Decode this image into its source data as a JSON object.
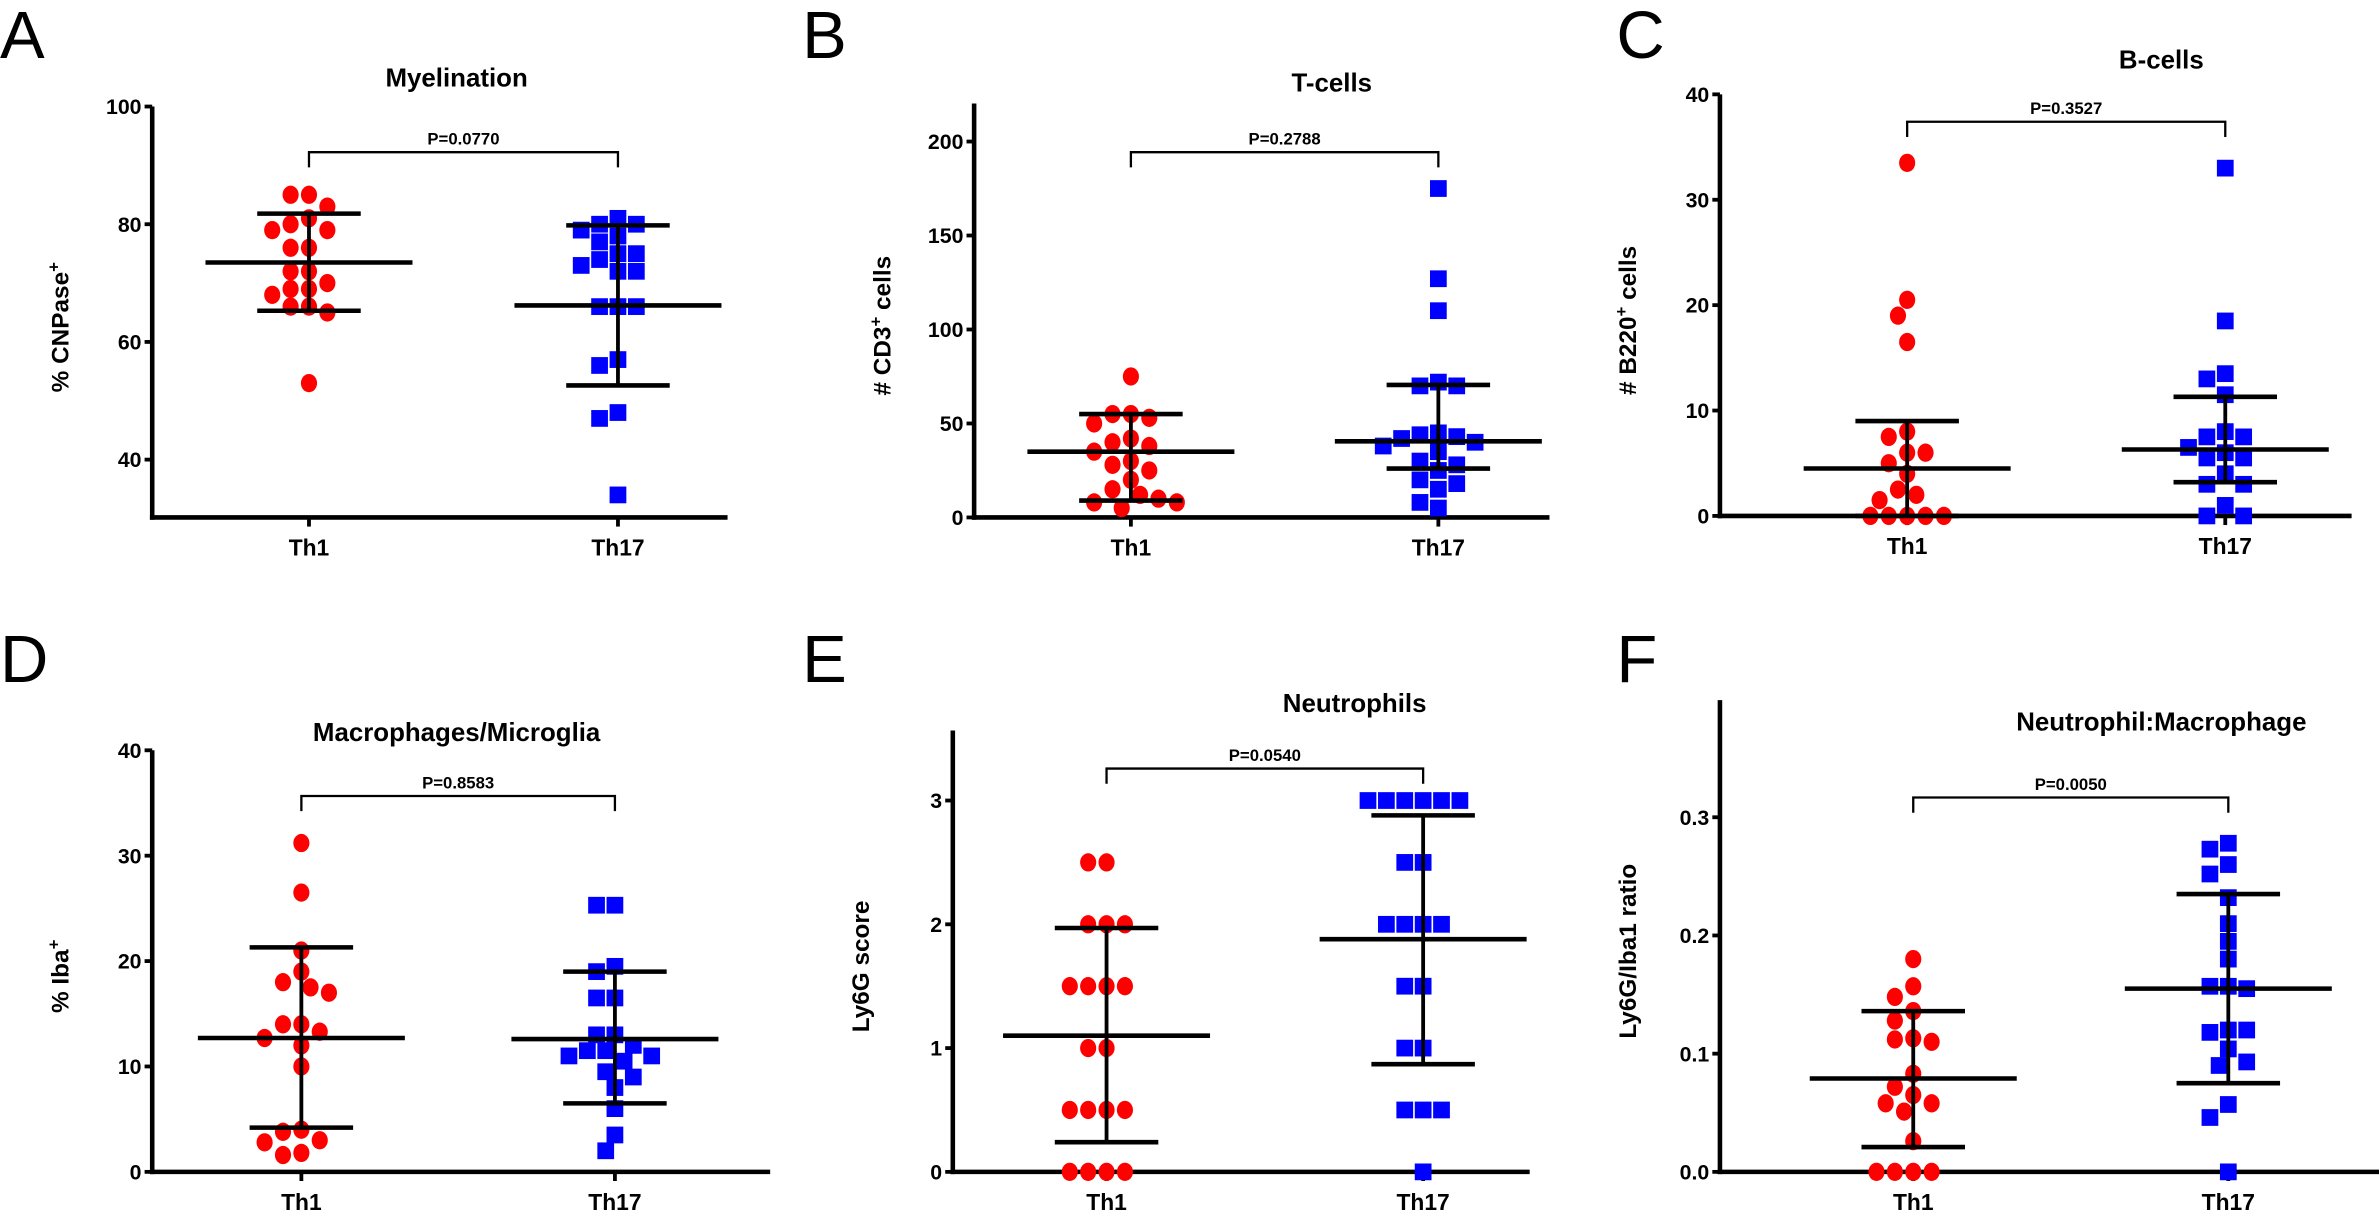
{
  "colors": {
    "th1": "#ff0000",
    "th17": "#0000ff",
    "axis": "#000000"
  },
  "chart_data": [
    {
      "panel": "A",
      "type": "scatter",
      "title": "Myelination",
      "ylabel": [
        "% CNPase",
        "+",
        ""
      ],
      "ylim": [
        30,
        100
      ],
      "ticks": [
        "40",
        "60",
        "80",
        "100"
      ],
      "tick_values": [
        40,
        60,
        80,
        100
      ],
      "categories": [
        "Th1",
        "Th17"
      ],
      "p_value": "P=0.0770",
      "series": [
        {
          "name": "Th1",
          "marker": "circle",
          "values": [
            85,
            85,
            83,
            81,
            80,
            79,
            79,
            76,
            76,
            72,
            72,
            70,
            69,
            69,
            68,
            66,
            66,
            65,
            53
          ],
          "mean": 73.5,
          "error": [
            65.3,
            81.8
          ]
        },
        {
          "name": "Th17",
          "marker": "square",
          "values": [
            81,
            80,
            80,
            79,
            78,
            77,
            75,
            75,
            74,
            73,
            72,
            72,
            66,
            66,
            66,
            57,
            56,
            48,
            47,
            34
          ],
          "mean": 66.2,
          "error": [
            52.6,
            79.8
          ]
        }
      ]
    },
    {
      "panel": "B",
      "type": "scatter",
      "title": "T-cells",
      "ylabel": [
        "# CD3",
        "+",
        " cells"
      ],
      "ylim": [
        0,
        220
      ],
      "ticks": [
        "0",
        "50",
        "100",
        "150",
        "200"
      ],
      "tick_values": [
        0,
        50,
        100,
        150,
        200
      ],
      "categories": [
        "Th1",
        "Th17"
      ],
      "p_value": "P=0.2788",
      "series": [
        {
          "name": "Th1",
          "marker": "circle",
          "values": [
            75,
            55,
            55,
            53,
            50,
            42,
            40,
            38,
            35,
            30,
            28,
            25,
            20,
            15,
            12,
            10,
            8,
            8,
            5
          ],
          "mean": 35,
          "error": [
            9,
            55
          ]
        },
        {
          "name": "Th17",
          "marker": "square",
          "values": [
            175,
            127,
            110,
            72,
            70,
            70,
            45,
            44,
            43,
            42,
            40,
            38,
            35,
            30,
            28,
            25,
            20,
            18,
            15,
            8,
            5
          ],
          "mean": 40.5,
          "error": [
            26,
            70.5
          ]
        }
      ]
    },
    {
      "panel": "C",
      "type": "scatter",
      "title": "B-cells",
      "ylabel": [
        "# B220",
        "+",
        " cells"
      ],
      "ylim": [
        0,
        40
      ],
      "ticks": [
        "0",
        "10",
        "20",
        "30",
        "40"
      ],
      "tick_values": [
        0,
        10,
        20,
        30,
        40
      ],
      "categories": [
        "Th1",
        "Th17"
      ],
      "p_value": "P=0.3527",
      "series": [
        {
          "name": "Th1",
          "marker": "circle",
          "values": [
            33.5,
            20.5,
            19,
            16.5,
            8,
            7.5,
            6,
            6,
            5,
            4,
            2.5,
            2,
            1.5,
            0,
            0,
            0,
            0,
            0
          ],
          "mean": 4.5,
          "error": [
            0,
            9
          ]
        },
        {
          "name": "Th17",
          "marker": "square",
          "values": [
            33,
            18.5,
            13.5,
            13,
            11.5,
            8,
            7.5,
            7.5,
            6.5,
            6,
            5.5,
            5.5,
            4,
            3,
            3,
            1,
            0,
            0
          ],
          "mean": 6.3,
          "error": [
            3.2,
            11.3
          ]
        }
      ]
    },
    {
      "panel": "D",
      "type": "scatter",
      "title": "Macrophages/Microglia",
      "ylabel": [
        "% Iba",
        "+",
        ""
      ],
      "ylim": [
        0,
        40
      ],
      "ticks": [
        "0",
        "10",
        "20",
        "30",
        "40"
      ],
      "tick_values": [
        0,
        10,
        20,
        30,
        40
      ],
      "categories": [
        "Th1",
        "Th17"
      ],
      "p_value": "P=0.8583",
      "series": [
        {
          "name": "Th1",
          "marker": "circle",
          "values": [
            31.2,
            26.5,
            21,
            19,
            18,
            17.5,
            17,
            14,
            14,
            13.3,
            12.7,
            12,
            10,
            4,
            3.8,
            3,
            2.8,
            1.8,
            1.6
          ],
          "mean": 12.7,
          "error": [
            4.2,
            21.3
          ]
        },
        {
          "name": "Th17",
          "marker": "square",
          "values": [
            25.3,
            25.3,
            19.5,
            19,
            16.5,
            16.5,
            13,
            13,
            12,
            11.5,
            11.5,
            11,
            11,
            10.5,
            9.5,
            9,
            8,
            6,
            3.5,
            2
          ],
          "mean": 12.6,
          "error": [
            6.5,
            19
          ]
        }
      ]
    },
    {
      "panel": "E",
      "type": "scatter",
      "title": "Neutrophils",
      "ylabel": [
        "Ly6G score",
        "",
        ""
      ],
      "ylim": [
        0,
        3.5
      ],
      "ticks": [
        "0",
        "1",
        "2",
        "3"
      ],
      "tick_values": [
        0,
        1,
        2,
        3
      ],
      "categories": [
        "Th1",
        "Th17"
      ],
      "p_value": "P=0.0540",
      "series": [
        {
          "name": "Th1",
          "marker": "circle",
          "values": [
            2.5,
            2.5,
            2,
            2,
            2,
            1.5,
            1.5,
            1.5,
            1.5,
            1,
            1,
            0.5,
            0.5,
            0.5,
            0.5,
            0,
            0,
            0,
            0
          ],
          "mean": 1.1,
          "error": [
            0.24,
            1.97
          ]
        },
        {
          "name": "Th17",
          "marker": "square",
          "values": [
            3,
            3,
            3,
            3,
            3,
            3,
            2.5,
            2.5,
            2,
            2,
            2,
            2,
            1.5,
            1.5,
            1,
            1,
            0.5,
            0.5,
            0.5,
            0
          ],
          "mean": 1.88,
          "error": [
            0.87,
            2.88
          ]
        }
      ]
    },
    {
      "panel": "F",
      "type": "scatter",
      "title": "Neutrophil:Macrophage",
      "ylabel": [
        "Ly6G/Iba1 ratio",
        "",
        ""
      ],
      "ylim": [
        0,
        0.35
      ],
      "ticks": [
        "0.0",
        "0.1",
        "0.2",
        "0.3"
      ],
      "tick_values": [
        0,
        0.1,
        0.2,
        0.3
      ],
      "categories": [
        "Th1",
        "Th17"
      ],
      "p_value": "P=0.0050",
      "series": [
        {
          "name": "Th1",
          "marker": "circle",
          "values": [
            0.18,
            0.157,
            0.148,
            0.136,
            0.128,
            0.113,
            0.112,
            0.11,
            0.083,
            0.072,
            0.065,
            0.058,
            0.058,
            0.051,
            0.026,
            0,
            0,
            0,
            0
          ],
          "mean": 0.079,
          "error": [
            0.021,
            0.136
          ]
        },
        {
          "name": "Th17",
          "marker": "square",
          "values": [
            0.278,
            0.273,
            0.26,
            0.252,
            0.232,
            0.21,
            0.195,
            0.18,
            0.157,
            0.157,
            0.155,
            0.12,
            0.118,
            0.12,
            0.104,
            0.09,
            0.093,
            0.057,
            0.046,
            0
          ],
          "mean": 0.155,
          "error": [
            0.075,
            0.235
          ]
        }
      ]
    }
  ]
}
